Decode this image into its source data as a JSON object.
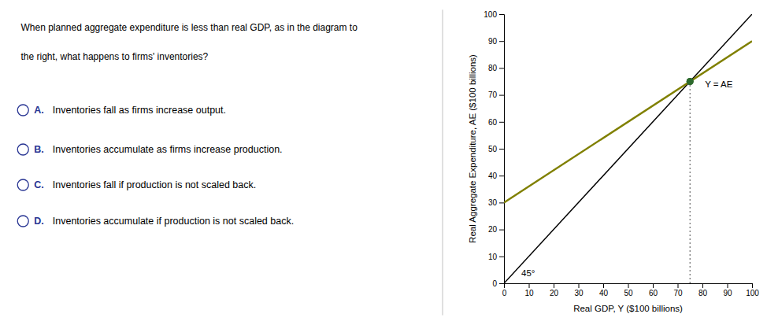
{
  "chart_data": {
    "type": "line",
    "question": [
      "When planned aggregate expenditure is less than real GDP, as in the diagram to",
      "the right, what happens to firms' inventories?"
    ],
    "options": [
      {
        "label": "A.",
        "text": "Inventories fall as firms increase output."
      },
      {
        "label": "B.",
        "text": "Inventories accumulate as firms increase production."
      },
      {
        "label": "C.",
        "text": "Inventories fall if production is not scaled back."
      },
      {
        "label": "D.",
        "text": "Inventories accumulate if production is not scaled back."
      }
    ],
    "xlabel": "Real GDP, Y ($100 billions)",
    "ylabel": "Real Aggregate Expenditure, AE ($100 billions)",
    "xlim": [
      0,
      100
    ],
    "ylim": [
      0,
      100
    ],
    "xticks": [
      0,
      10,
      20,
      30,
      40,
      50,
      60,
      70,
      80,
      90,
      100
    ],
    "yticks": [
      0,
      10,
      20,
      30,
      40,
      50,
      60,
      70,
      80,
      90,
      100
    ],
    "grid": false,
    "series": [
      {
        "type": "line",
        "color": "#000000",
        "x": [
          0,
          100
        ],
        "values": [
          0,
          100
        ]
      },
      {
        "type": "line",
        "color": "#808000",
        "x": [
          0,
          100
        ],
        "values": [
          30,
          90
        ]
      },
      {
        "type": "line",
        "line_style": "dotted",
        "color": "#777777",
        "x": [
          75,
          75
        ],
        "values": [
          0,
          75
        ]
      },
      {
        "type": "scatter",
        "color": "#2d6a2d",
        "x": [
          75
        ],
        "values": [
          75
        ]
      },
      {
        "type": "scatter",
        "color": "#2d6a2d",
        "x": [
          75
        ],
        "values": [
          75
        ]
      }
    ],
    "annotations": [
      {
        "text": "45°",
        "x": 7,
        "y": 2.5
      },
      {
        "text": "Y = AE",
        "x": 81,
        "y": 74
      }
    ]
  }
}
